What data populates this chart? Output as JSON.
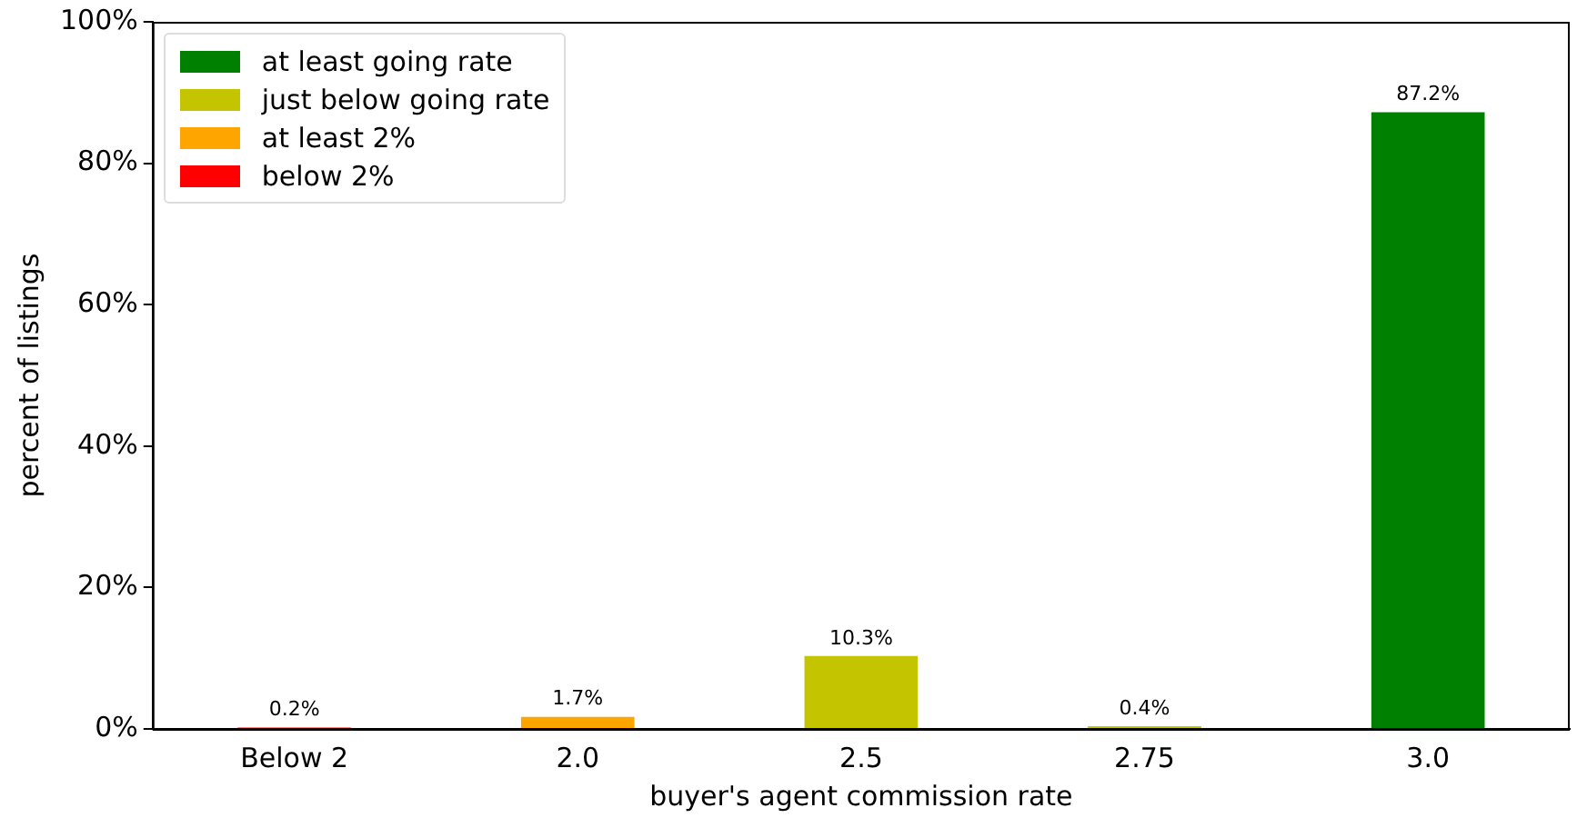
{
  "chart_data": {
    "type": "bar",
    "xlabel": "buyer's agent commission rate",
    "ylabel": "percent of listings",
    "categories": [
      "Below 2",
      "2.0",
      "2.5",
      "2.75",
      "3.0"
    ],
    "series": [
      {
        "name": "at least going rate",
        "color": "#008000",
        "values": [
          null,
          null,
          null,
          null,
          87.2
        ],
        "value_labels": [
          null,
          null,
          null,
          null,
          "87.2%"
        ]
      },
      {
        "name": "just below going rate",
        "color": "#c4c400",
        "values": [
          null,
          null,
          10.3,
          0.4,
          null
        ],
        "value_labels": [
          null,
          null,
          "10.3%",
          "0.4%",
          null
        ]
      },
      {
        "name": "at least 2%",
        "color": "#ffa500",
        "values": [
          null,
          1.7,
          null,
          null,
          null
        ],
        "value_labels": [
          null,
          "1.7%",
          null,
          null,
          null
        ]
      },
      {
        "name": "below 2%",
        "color": "#ff0000",
        "values": [
          0.2,
          null,
          null,
          null,
          null
        ],
        "value_labels": [
          "0.2%",
          null,
          null,
          null,
          null
        ]
      }
    ],
    "ylim": [
      0,
      100
    ],
    "yticks": [
      {
        "value": 0,
        "label": "0%"
      },
      {
        "value": 20,
        "label": "20%"
      },
      {
        "value": 40,
        "label": "40%"
      },
      {
        "value": 60,
        "label": "60%"
      },
      {
        "value": 80,
        "label": "80%"
      },
      {
        "value": 100,
        "label": "100%"
      }
    ],
    "grid": false,
    "legend": "top left"
  }
}
